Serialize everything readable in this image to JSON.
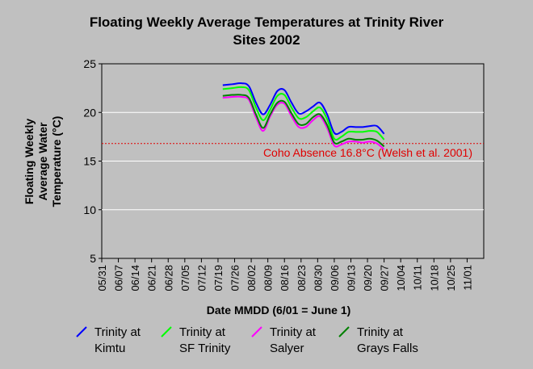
{
  "chart_data": {
    "type": "line",
    "title": "Floating Weekly Average Temperatures at Trinity River Sites 2002",
    "title_lines": [
      "Floating Weekly Average Temperatures at Trinity River",
      "Sites 2002"
    ],
    "xlabel": "Date MMDD (6/01 = June 1)",
    "ylabel": "Floating Weekly Average Water Temperature (°C)",
    "ylabel_lines": [
      "Floating Weekly",
      "Average Water",
      "Temperature (°C)"
    ],
    "ylim": [
      5,
      25
    ],
    "yticks": [
      5,
      10,
      15,
      20,
      25
    ],
    "xlim": [
      "05/31",
      "11/08"
    ],
    "xticks": [
      "05/31",
      "06/07",
      "06/14",
      "06/21",
      "06/28",
      "07/05",
      "07/12",
      "07/19",
      "07/26",
      "08/02",
      "08/09",
      "08/16",
      "08/23",
      "08/30",
      "09/06",
      "09/13",
      "09/20",
      "09/27",
      "10/04",
      "10/11",
      "10/18",
      "10/25",
      "11/01"
    ],
    "grid": "horizontal",
    "legend_position": "bottom",
    "reference_line": {
      "y": 16.8,
      "label": "Coho Absence 16.8°C (Welsh et al. 2001)",
      "color": "#e00000"
    },
    "series": [
      {
        "name": "Trinity at Kimtu",
        "color": "#0000ff",
        "x": [
          "07/21",
          "07/25",
          "07/29",
          "08/01",
          "08/04",
          "08/07",
          "08/10",
          "08/13",
          "08/16",
          "08/19",
          "08/22",
          "08/25",
          "08/28",
          "08/31",
          "09/03",
          "09/06",
          "09/09",
          "09/12",
          "09/15",
          "09/18",
          "09/21",
          "09/24",
          "09/27"
        ],
        "values": [
          22.8,
          22.9,
          23.0,
          22.7,
          21.0,
          19.8,
          20.8,
          22.2,
          22.3,
          21.0,
          19.9,
          20.1,
          20.6,
          21.0,
          19.8,
          17.9,
          18.0,
          18.5,
          18.5,
          18.5,
          18.6,
          18.6,
          17.8
        ]
      },
      {
        "name": "Trinity at SF Trinity",
        "color": "#00ff00",
        "x": [
          "07/21",
          "07/25",
          "07/29",
          "08/01",
          "08/04",
          "08/07",
          "08/10",
          "08/13",
          "08/16",
          "08/19",
          "08/22",
          "08/25",
          "08/28",
          "08/31",
          "09/03",
          "09/06",
          "09/09",
          "09/12",
          "09/15",
          "09/18",
          "09/21",
          "09/24",
          "09/27"
        ],
        "values": [
          22.4,
          22.5,
          22.6,
          22.3,
          20.5,
          19.2,
          20.3,
          21.7,
          21.8,
          20.5,
          19.4,
          19.5,
          20.1,
          20.5,
          19.3,
          17.3,
          17.5,
          18.0,
          18.0,
          18.0,
          18.1,
          18.0,
          17.2
        ]
      },
      {
        "name": "Trinity at Salyer",
        "color": "#ff00ff",
        "x": [
          "07/21",
          "07/25",
          "07/29",
          "08/01",
          "08/04",
          "08/07",
          "08/10",
          "08/13",
          "08/16",
          "08/19",
          "08/22",
          "08/25",
          "08/28",
          "08/31",
          "09/03",
          "09/06",
          "09/09",
          "09/12",
          "09/15",
          "09/18",
          "09/21",
          "09/24",
          "09/27"
        ],
        "values": [
          21.5,
          21.6,
          21.6,
          21.3,
          19.5,
          18.1,
          19.6,
          20.8,
          20.9,
          19.6,
          18.5,
          18.5,
          19.2,
          19.6,
          18.4,
          16.6,
          16.7,
          17.0,
          17.0,
          16.9,
          17.0,
          16.8,
          16.2
        ]
      },
      {
        "name": "Trinity at Grays Falls",
        "color": "#008000",
        "x": [
          "07/21",
          "07/25",
          "07/29",
          "08/01",
          "08/04",
          "08/07",
          "08/10",
          "08/13",
          "08/16",
          "08/19",
          "08/22",
          "08/25",
          "08/28",
          "08/31",
          "09/03",
          "09/06",
          "09/09",
          "09/12",
          "09/15",
          "09/18",
          "09/21",
          "09/24",
          "09/27"
        ],
        "values": [
          21.7,
          21.8,
          21.8,
          21.5,
          19.8,
          18.4,
          19.8,
          21.0,
          21.1,
          19.9,
          18.8,
          18.8,
          19.5,
          19.8,
          18.7,
          16.9,
          17.0,
          17.3,
          17.2,
          17.2,
          17.3,
          17.1,
          16.5
        ]
      }
    ]
  }
}
